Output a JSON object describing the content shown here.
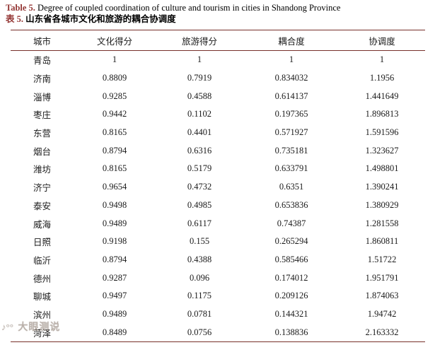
{
  "title": {
    "en_label": "Table 5.",
    "en_text": "Degree of coupled coordination of culture and tourism in cities in Shandong Province",
    "zh_label": "表 5.",
    "zh_text": "山东省各城市文化和旅游的耦合协调度"
  },
  "colors": {
    "accent_red": "#943634",
    "rule_red": "#78302a",
    "text": "#1a1a1a",
    "watermark_gray": "#9e9288"
  },
  "watermark": {
    "logo": "♪°°",
    "text": "大眼测说"
  },
  "table": {
    "headers": [
      "城市",
      "文化得分",
      "旅游得分",
      "耦合度",
      "协调度"
    ],
    "rows": [
      [
        "青岛",
        "1",
        "1",
        "1",
        "1"
      ],
      [
        "济南",
        "0.8809",
        "0.7919",
        "0.834032",
        "1.1956"
      ],
      [
        "淄博",
        "0.9285",
        "0.4588",
        "0.614137",
        "1.441649"
      ],
      [
        "枣庄",
        "0.9442",
        "0.1102",
        "0.197365",
        "1.896813"
      ],
      [
        "东营",
        "0.8165",
        "0.4401",
        "0.571927",
        "1.591596"
      ],
      [
        "烟台",
        "0.8794",
        "0.6316",
        "0.735181",
        "1.323627"
      ],
      [
        "潍坊",
        "0.8165",
        "0.5179",
        "0.633791",
        "1.498801"
      ],
      [
        "济宁",
        "0.9654",
        "0.4732",
        "0.6351",
        "1.390241"
      ],
      [
        "泰安",
        "0.9498",
        "0.4985",
        "0.653836",
        "1.380929"
      ],
      [
        "威海",
        "0.9489",
        "0.6117",
        "0.74387",
        "1.281558"
      ],
      [
        "日照",
        "0.9198",
        "0.155",
        "0.265294",
        "1.860811"
      ],
      [
        "临沂",
        "0.8794",
        "0.4388",
        "0.585466",
        "1.51722"
      ],
      [
        "德州",
        "0.9287",
        "0.096",
        "0.174012",
        "1.951791"
      ],
      [
        "聊城",
        "0.9497",
        "0.1175",
        "0.209126",
        "1.874063"
      ],
      [
        "滨州",
        "0.9489",
        "0.0781",
        "0.144321",
        "1.94742"
      ],
      [
        "菏泽",
        "0.8489",
        "0.0756",
        "0.138836",
        "2.163332"
      ]
    ]
  }
}
